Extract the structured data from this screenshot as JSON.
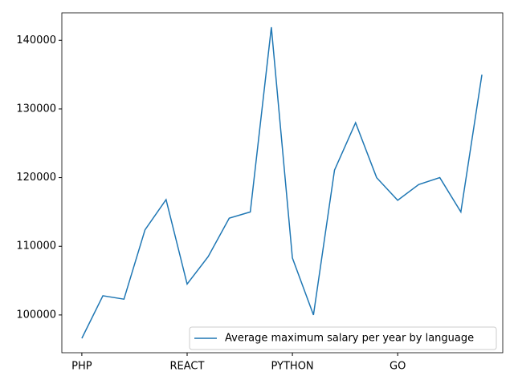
{
  "chart_data": {
    "type": "line",
    "categories": [
      "PHP",
      null,
      null,
      null,
      null,
      "REACT",
      null,
      null,
      null,
      null,
      "PYTHON",
      null,
      null,
      null,
      null,
      "GO",
      null,
      null,
      null,
      null
    ],
    "series": [
      {
        "name": "Average maximum salary per year by language",
        "color": "#1f77b4",
        "values": [
          96600,
          102800,
          102300,
          112400,
          116800,
          104500,
          108500,
          114100,
          115000,
          141900,
          108300,
          100000,
          121100,
          128000,
          120000,
          116700,
          119000,
          120000,
          115000,
          135000
        ]
      }
    ],
    "xlim": [
      -0.95,
      19.99
    ],
    "ylim": [
      94500,
      144000
    ],
    "yticks": [
      100000,
      110000,
      120000,
      130000,
      140000
    ],
    "grid": false,
    "legend": "lower right"
  }
}
